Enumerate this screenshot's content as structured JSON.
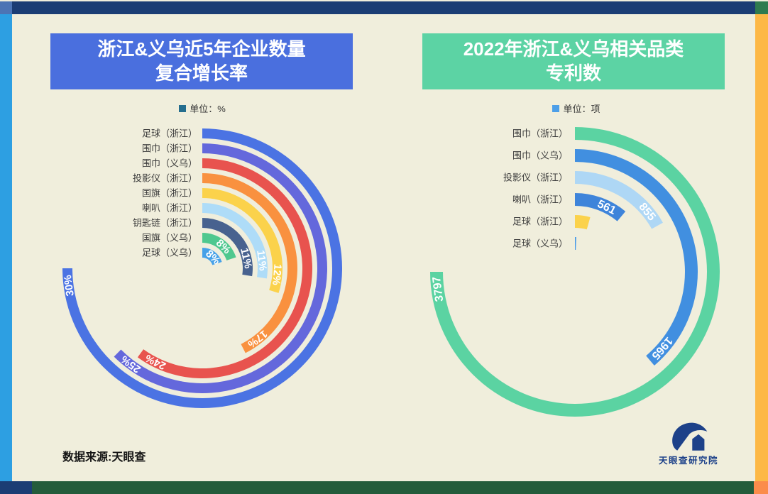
{
  "page": {
    "background": "#F0EEDC",
    "frame": {
      "top_bar": "#1B3D74",
      "top_left_square": "#4C74B4",
      "top_right_square": "#2F7B4F",
      "left_strip": "#2D9FE2",
      "right_strip": "#FDB845",
      "bottom_bar": "#245C3B",
      "bottom_left_square": "#1B3D74",
      "bottom_right_square": "#FB8C4B"
    },
    "footer": {
      "source_text": "数据来源:天眼查"
    },
    "logo": {
      "text": "天眼查研究院",
      "color": "#1D4189"
    }
  },
  "chart_data": [
    {
      "type": "radial-bar",
      "title": "浙江&义乌近5年企业数量复合增长率",
      "title_line1": "浙江&义乌近5年企业数量",
      "title_line2": "复合增长率",
      "title_bg": "#4A6FDE",
      "unit_label": "单位：%",
      "unit_marker_color": "#256E8E",
      "unit": "%",
      "start_angle_deg": 0,
      "direction": "clockwise",
      "max_value_angle_deg": 270,
      "legend_position": "none",
      "items": [
        {
          "label": "足球（浙江）",
          "value": 30,
          "value_label": "30%",
          "color": "#4B73E3"
        },
        {
          "label": "围巾（浙江）",
          "value": 25,
          "value_label": "25%",
          "color": "#6468DC"
        },
        {
          "label": "围巾（义乌）",
          "value": 24,
          "value_label": "24%",
          "color": "#E8534E"
        },
        {
          "label": "投影仪（浙江）",
          "value": 17,
          "value_label": "17%",
          "color": "#F9913F"
        },
        {
          "label": "国旗（浙江）",
          "value": 12,
          "value_label": "12%",
          "color": "#FBD24B"
        },
        {
          "label": "喇叭（浙江）",
          "value": 11,
          "value_label": "11%",
          "color": "#AEDCF8"
        },
        {
          "label": "钥匙链（浙江）",
          "value": 11,
          "value_label": "11%",
          "color": "#48628F"
        },
        {
          "label": "国旗（义乌）",
          "value": 8,
          "value_label": "8%",
          "color": "#4FC88F"
        },
        {
          "label": "足球（义乌）",
          "value": 8,
          "value_label": "8%",
          "color": "#46A1E8"
        }
      ]
    },
    {
      "type": "radial-bar",
      "title": "2022年浙江&义乌相关品类专利数",
      "title_line1": "2022年浙江&义乌相关品类",
      "title_line2": "专利数",
      "title_bg": "#5CD3A4",
      "unit_label": "单位：项",
      "unit_marker_color": "#4D9FE8",
      "unit": "项",
      "start_angle_deg": 0,
      "direction": "clockwise",
      "max_value_angle_deg": 270,
      "legend_position": "none",
      "items": [
        {
          "label": "围巾（浙江）",
          "value": 3797,
          "value_label": "3797",
          "color": "#5BD3A2"
        },
        {
          "label": "围巾（义乌）",
          "value": 1965,
          "value_label": "1965",
          "color": "#418FE0"
        },
        {
          "label": "投影仪（浙江）",
          "value": 855,
          "value_label": "855",
          "color": "#AED7F5"
        },
        {
          "label": "喇叭（浙江）",
          "value": 561,
          "value_label": "561",
          "color": "#3E84DA"
        },
        {
          "label": "足球（浙江）",
          "value": 220,
          "value_label": "",
          "color": "#FBD24B",
          "estimated": true
        },
        {
          "label": "足球（义乌）",
          "value": 30,
          "value_label": "",
          "color": "#4A9BE8",
          "estimated": true
        }
      ]
    }
  ]
}
